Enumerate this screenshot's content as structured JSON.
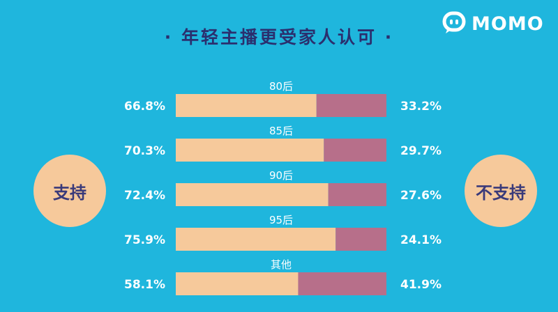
{
  "title": "· 年轻主播更受家人认可 ·",
  "logo": {
    "text": "MOMO"
  },
  "left_label": "支持",
  "right_label": "不支持",
  "colors": {
    "background": "#1fb6dd",
    "support": "#f6c99b",
    "oppose": "#b76f8a",
    "title": "#2b2f6e"
  },
  "chart_data": {
    "type": "bar",
    "stacked": true,
    "orientation": "horizontal",
    "title": "· 年轻主播更受家人认可 ·",
    "categories": [
      "80后",
      "85后",
      "90后",
      "95后",
      "其他"
    ],
    "series": [
      {
        "name": "支持",
        "values": [
          66.8,
          70.3,
          72.4,
          75.9,
          58.1
        ],
        "labels": [
          "66.8%",
          "70.3%",
          "72.4%",
          "75.9%",
          "58.1%"
        ]
      },
      {
        "name": "不支持",
        "values": [
          33.2,
          29.7,
          27.6,
          24.1,
          41.9
        ],
        "labels": [
          "33.2%",
          "29.7%",
          "27.6%",
          "24.1%",
          "41.9%"
        ]
      }
    ],
    "xlim": [
      0,
      100
    ],
    "grid": false
  }
}
